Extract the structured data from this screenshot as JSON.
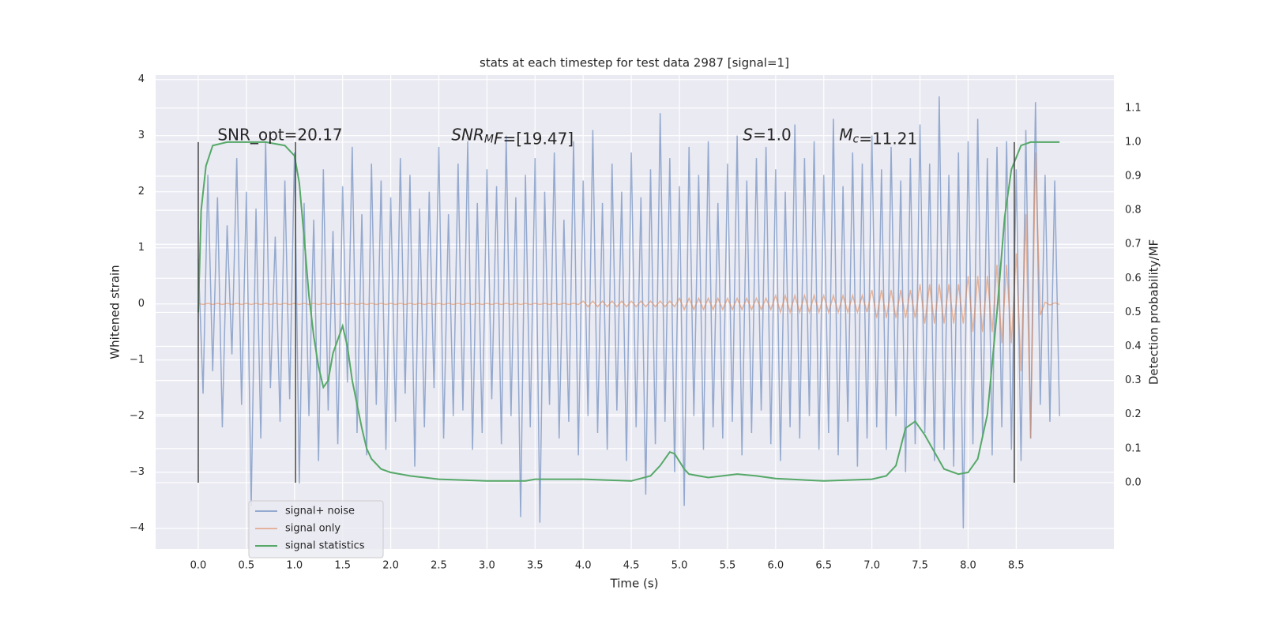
{
  "chart_data": {
    "type": "line",
    "title": "stats at each timestep for test data 2987 [signal=1]",
    "xlabel": "Time (s)",
    "ylabel": "Whitened strain",
    "y2label": "Detection probability/MF",
    "xlim": [
      -0.443,
      9.515
    ],
    "ylim": [
      -4.37,
      4.08
    ],
    "y2lim": [
      -0.195,
      1.197
    ],
    "xticks": [
      {
        "value": 0,
        "label": "0.0"
      },
      {
        "value": 0.5,
        "label": "0.5"
      },
      {
        "value": 1,
        "label": "1.0"
      },
      {
        "value": 1.5,
        "label": "1.5"
      },
      {
        "value": 2,
        "label": "2.0"
      },
      {
        "value": 2.5,
        "label": "2.5"
      },
      {
        "value": 3,
        "label": "3.0"
      },
      {
        "value": 3.5,
        "label": "3.5"
      },
      {
        "value": 4,
        "label": "4.0"
      },
      {
        "value": 4.5,
        "label": "4.5"
      },
      {
        "value": 5,
        "label": "5.0"
      },
      {
        "value": 5.5,
        "label": "5.5"
      },
      {
        "value": 6,
        "label": "6.0"
      },
      {
        "value": 6.5,
        "label": "6.5"
      },
      {
        "value": 7,
        "label": "7.0"
      },
      {
        "value": 7.5,
        "label": "7.5"
      },
      {
        "value": 8,
        "label": "8.0"
      },
      {
        "value": 8.5,
        "label": "8.5"
      }
    ],
    "yticks": [
      {
        "value": -4,
        "label": "−4"
      },
      {
        "value": -3,
        "label": "−3"
      },
      {
        "value": -2,
        "label": "−2"
      },
      {
        "value": -1,
        "label": "−1"
      },
      0,
      1,
      2,
      3,
      4
    ],
    "y2ticks": [
      {
        "value": 0,
        "label": "0.0"
      },
      {
        "value": 0.1,
        "label": "0.1"
      },
      {
        "value": 0.2,
        "label": "0.2"
      },
      {
        "value": 0.3,
        "label": "0.3"
      },
      {
        "value": 0.4,
        "label": "0.4"
      },
      {
        "value": 0.5,
        "label": "0.5"
      },
      {
        "value": 0.6,
        "label": "0.6"
      },
      {
        "value": 0.7,
        "label": "0.7"
      },
      {
        "value": 0.8,
        "label": "0.8"
      },
      {
        "value": 0.9,
        "label": "0.9"
      },
      {
        "value": 1.0,
        "label": "1.0"
      },
      {
        "value": 1.1,
        "label": "1.1"
      }
    ],
    "grid": true,
    "legend": "lower left",
    "x": [
      0,
      0.05,
      0.1,
      0.15,
      0.2,
      0.25,
      0.3,
      0.35,
      0.4,
      0.45,
      0.5,
      0.55,
      0.6,
      0.65,
      0.7,
      0.75,
      0.8,
      0.85,
      0.9,
      0.95,
      1,
      1.05,
      1.1,
      1.15,
      1.2,
      1.25,
      1.3,
      1.35,
      1.4,
      1.45,
      1.5,
      1.55,
      1.6,
      1.65,
      1.7,
      1.75,
      1.8,
      1.85,
      1.9,
      1.95,
      2,
      2.05,
      2.1,
      2.15,
      2.2,
      2.25,
      2.3,
      2.35,
      2.4,
      2.45,
      2.5,
      2.55,
      2.6,
      2.65,
      2.7,
      2.75,
      2.8,
      2.85,
      2.9,
      2.95,
      3,
      3.05,
      3.1,
      3.15,
      3.2,
      3.25,
      3.3,
      3.35,
      3.4,
      3.45,
      3.5,
      3.55,
      3.6,
      3.65,
      3.7,
      3.75,
      3.8,
      3.85,
      3.9,
      3.95,
      4,
      4.05,
      4.1,
      4.15,
      4.2,
      4.25,
      4.3,
      4.35,
      4.4,
      4.45,
      4.5,
      4.55,
      4.6,
      4.65,
      4.7,
      4.75,
      4.8,
      4.85,
      4.9,
      4.95,
      5,
      5.05,
      5.1,
      5.15,
      5.2,
      5.25,
      5.3,
      5.35,
      5.4,
      5.45,
      5.5,
      5.55,
      5.6,
      5.65,
      5.7,
      5.75,
      5.8,
      5.85,
      5.9,
      5.95,
      6,
      6.05,
      6.1,
      6.15,
      6.2,
      6.25,
      6.3,
      6.35,
      6.4,
      6.45,
      6.5,
      6.55,
      6.6,
      6.65,
      6.7,
      6.75,
      6.8,
      6.85,
      6.9,
      6.95,
      7,
      7.05,
      7.1,
      7.15,
      7.2,
      7.25,
      7.3,
      7.35,
      7.4,
      7.45,
      7.5,
      7.55,
      7.6,
      7.65,
      7.7,
      7.75,
      7.8,
      7.85,
      7.9,
      7.95,
      8,
      8.05,
      8.1,
      8.15,
      8.2,
      8.25,
      8.3,
      8.35,
      8.4,
      8.45,
      8.5,
      8.55,
      8.6,
      8.65,
      8.7,
      8.75,
      8.8,
      8.85,
      8.9,
      8.95
    ],
    "series": [
      {
        "name": "signal+ noise",
        "color": "#4c72b0",
        "values": [
          0.8,
          -1.6,
          2.3,
          -1.2,
          1.9,
          -2.2,
          1.4,
          -0.9,
          2.6,
          -1.8,
          2.0,
          -3.6,
          1.7,
          -2.4,
          2.9,
          -1.5,
          1.2,
          -2.1,
          2.2,
          -1.7,
          2.7,
          -3.2,
          1.8,
          -2.0,
          1.5,
          -2.8,
          2.4,
          -1.9,
          1.3,
          -2.5,
          2.1,
          -1.4,
          2.8,
          -2.3,
          1.6,
          -2.7,
          2.5,
          -1.8,
          2.2,
          -2.6,
          1.9,
          -2.1,
          2.6,
          -1.6,
          2.3,
          -2.9,
          1.7,
          -2.2,
          2.0,
          -1.5,
          2.8,
          -2.4,
          1.6,
          -2.0,
          2.5,
          -1.9,
          2.9,
          -2.6,
          1.8,
          -2.3,
          2.4,
          -1.7,
          2.1,
          -2.5,
          3.0,
          -2.0,
          1.9,
          -3.8,
          2.3,
          -2.2,
          2.6,
          -3.9,
          2.0,
          -1.8,
          2.7,
          -2.4,
          1.5,
          -2.1,
          2.9,
          -2.7,
          2.2,
          -2.0,
          3.1,
          -2.3,
          1.8,
          -2.6,
          2.5,
          -1.9,
          2.0,
          -2.8,
          2.7,
          -2.2,
          1.9,
          -3.4,
          2.4,
          -2.5,
          3.4,
          -2.1,
          2.6,
          -3.0,
          2.1,
          -3.6,
          2.8,
          -2.0,
          2.3,
          -2.6,
          2.9,
          -2.2,
          1.8,
          -2.4,
          2.5,
          -2.1,
          3.0,
          -2.7,
          2.2,
          -2.3,
          2.6,
          -1.9,
          2.8,
          -2.5,
          2.4,
          -2.8,
          2.0,
          -2.2,
          3.2,
          -2.4,
          2.6,
          -2.0,
          2.9,
          -2.6,
          2.3,
          -2.3,
          3.3,
          -2.7,
          2.1,
          -2.1,
          2.7,
          -2.9,
          2.5,
          -2.4,
          3.0,
          -2.2,
          2.4,
          -2.6,
          2.8,
          -2.0,
          2.2,
          -3.0,
          2.6,
          -2.5,
          3.2,
          -2.3,
          2.5,
          -2.8,
          3.7,
          -2.6,
          2.3,
          -2.9,
          2.7,
          -4.0,
          2.9,
          -2.5,
          3.3,
          -2.4,
          2.6,
          -2.7,
          2.8,
          -2.2,
          2.9,
          -2.6,
          2.4,
          -2.8,
          3.1,
          -2.4,
          3.6,
          -1.8,
          2.3,
          -2.1,
          2.2,
          -2.0
        ]
      },
      {
        "name": "signal only",
        "color": "#dd8452",
        "values": [
          0.01,
          -0.01,
          0.01,
          -0.01,
          0.01,
          -0.01,
          0.01,
          -0.01,
          0.01,
          -0.01,
          0.01,
          -0.01,
          0.01,
          -0.01,
          0.01,
          -0.01,
          0.01,
          -0.01,
          0.01,
          -0.01,
          0.01,
          -0.01,
          0.01,
          -0.01,
          0.01,
          -0.01,
          0.01,
          -0.01,
          0.01,
          -0.01,
          0.01,
          -0.01,
          0.01,
          -0.01,
          0.01,
          -0.01,
          0.01,
          -0.01,
          0.01,
          -0.01,
          0.01,
          -0.01,
          0.01,
          -0.01,
          0.01,
          -0.01,
          0.01,
          -0.01,
          0.01,
          -0.01,
          0.01,
          -0.01,
          0.01,
          -0.01,
          0.01,
          -0.01,
          0.01,
          -0.01,
          0.01,
          -0.01,
          0.01,
          -0.01,
          0.01,
          -0.01,
          0.01,
          -0.01,
          0.01,
          -0.01,
          0.01,
          -0.01,
          0.01,
          -0.01,
          0.01,
          -0.01,
          0.01,
          -0.01,
          0.01,
          -0.01,
          0.01,
          -0.01,
          0.05,
          -0.05,
          0.05,
          -0.05,
          0.05,
          -0.05,
          0.05,
          -0.05,
          0.05,
          -0.05,
          0.05,
          -0.05,
          0.05,
          -0.05,
          0.05,
          -0.05,
          0.05,
          -0.05,
          0.05,
          -0.05,
          0.1,
          -0.1,
          0.1,
          -0.1,
          0.1,
          -0.1,
          0.1,
          -0.1,
          0.1,
          -0.1,
          0.1,
          -0.1,
          0.1,
          -0.1,
          0.1,
          -0.1,
          0.1,
          -0.1,
          0.1,
          -0.1,
          0.15,
          -0.15,
          0.15,
          -0.15,
          0.15,
          -0.15,
          0.15,
          -0.15,
          0.15,
          -0.15,
          0.15,
          -0.15,
          0.15,
          -0.15,
          0.15,
          -0.15,
          0.15,
          -0.15,
          0.15,
          -0.15,
          0.25,
          -0.25,
          0.25,
          -0.25,
          0.25,
          -0.25,
          0.25,
          -0.25,
          0.25,
          -0.25,
          0.35,
          -0.35,
          0.35,
          -0.35,
          0.35,
          -0.35,
          0.35,
          -0.35,
          0.35,
          -0.35,
          0.5,
          -0.5,
          0.5,
          -0.5,
          0.5,
          -0.5,
          0.7,
          -0.7,
          0.7,
          -0.7,
          0.9,
          -1.2,
          1.6,
          -2.4,
          2.7,
          -0.2,
          0.03,
          -0.02,
          0.02,
          -0.01
        ]
      },
      {
        "name": "signal statistics",
        "color": "#55a868",
        "axis": "y2",
        "x": [
          0,
          0.03,
          0.08,
          0.15,
          0.3,
          0.5,
          0.7,
          0.9,
          1.0,
          1.05,
          1.1,
          1.15,
          1.2,
          1.25,
          1.3,
          1.35,
          1.4,
          1.5,
          1.55,
          1.6,
          1.7,
          1.75,
          1.8,
          1.9,
          2.0,
          2.2,
          2.5,
          3.0,
          3.4,
          3.5,
          4.0,
          4.5,
          4.7,
          4.8,
          4.9,
          4.95,
          5.05,
          5.1,
          5.3,
          5.6,
          5.8,
          6.0,
          6.5,
          7.0,
          7.15,
          7.25,
          7.35,
          7.45,
          7.55,
          7.65,
          7.75,
          7.9,
          8.0,
          8.1,
          8.2,
          8.3,
          8.38,
          8.45,
          8.55,
          8.65,
          8.95
        ],
        "values": [
          0.5,
          0.8,
          0.93,
          0.99,
          1.0,
          1.0,
          1.0,
          0.99,
          0.96,
          0.88,
          0.72,
          0.55,
          0.43,
          0.34,
          0.28,
          0.3,
          0.38,
          0.46,
          0.4,
          0.3,
          0.16,
          0.1,
          0.07,
          0.04,
          0.03,
          0.02,
          0.01,
          0.005,
          0.005,
          0.01,
          0.01,
          0.005,
          0.02,
          0.05,
          0.09,
          0.085,
          0.04,
          0.025,
          0.015,
          0.025,
          0.02,
          0.012,
          0.005,
          0.01,
          0.02,
          0.05,
          0.16,
          0.18,
          0.14,
          0.09,
          0.04,
          0.025,
          0.03,
          0.07,
          0.2,
          0.5,
          0.78,
          0.92,
          0.99,
          1.0,
          1.0
        ]
      }
    ],
    "vlines": {
      "x": [
        0,
        1.01,
        8.48
      ],
      "ymin": 0,
      "ymax": 1,
      "axis": "y2",
      "color": "#444"
    },
    "annotations": [
      {
        "text": "SNR_opt=20.17",
        "x": 0.2,
        "y": 3.0
      },
      {
        "math": "SNR",
        "sub": "M",
        "rest_math": "F",
        "text": "=[19.47]",
        "x": 2.63,
        "y": 3.0
      },
      {
        "math": "S",
        "text": "=1.0",
        "x": 5.66,
        "y": 3.0
      },
      {
        "math": "M",
        "sub": "c",
        "text": "=11.21",
        "x": 6.66,
        "y": 3.0
      }
    ]
  }
}
